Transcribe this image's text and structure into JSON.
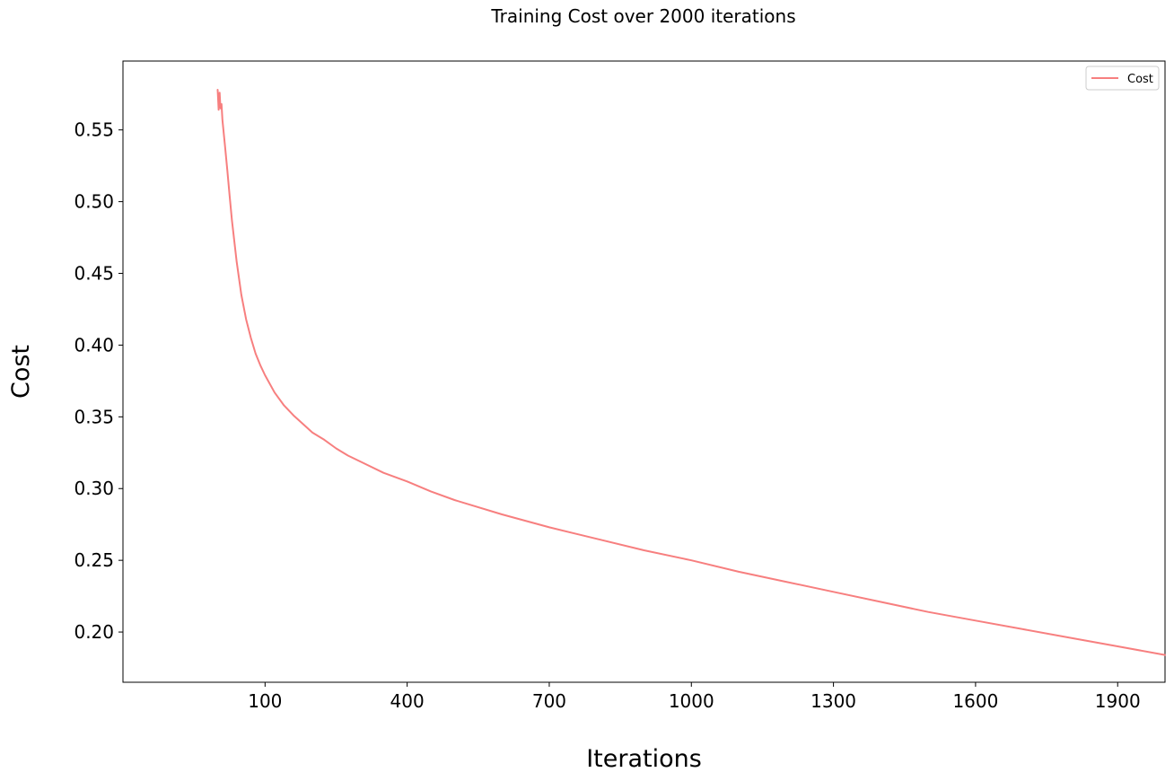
{
  "chart_data": {
    "type": "line",
    "title": "Training Cost over 2000 iterations",
    "xlabel": "Iterations",
    "ylabel": "Cost",
    "xlim": [
      -200,
      2000
    ],
    "ylim": [
      0.165,
      0.598
    ],
    "xticks": [
      100,
      400,
      700,
      1000,
      1300,
      1600,
      1900
    ],
    "xtick_labels": [
      "100",
      "400",
      "700",
      "1000",
      "1300",
      "1600",
      "1900"
    ],
    "yticks": [
      0.2,
      0.25,
      0.3,
      0.35,
      0.4,
      0.45,
      0.5,
      0.55
    ],
    "ytick_labels": [
      "0.20",
      "0.25",
      "0.30",
      "0.35",
      "0.40",
      "0.45",
      "0.50",
      "0.55"
    ],
    "grid": false,
    "legend_position": "top-right",
    "series": [
      {
        "name": "Cost",
        "color": "#f77f7f",
        "x": [
          0,
          2,
          3,
          4,
          5,
          6,
          8,
          10,
          15,
          20,
          25,
          30,
          40,
          50,
          60,
          70,
          80,
          90,
          100,
          120,
          140,
          160,
          180,
          200,
          225,
          250,
          275,
          300,
          350,
          400,
          450,
          500,
          600,
          700,
          800,
          900,
          1000,
          1100,
          1200,
          1300,
          1400,
          1500,
          1600,
          1700,
          1800,
          1900,
          2000
        ],
        "values": [
          0.578,
          0.564,
          0.572,
          0.576,
          0.57,
          0.565,
          0.568,
          0.557,
          0.54,
          0.523,
          0.505,
          0.487,
          0.458,
          0.435,
          0.418,
          0.405,
          0.394,
          0.386,
          0.379,
          0.367,
          0.358,
          0.351,
          0.345,
          0.339,
          0.334,
          0.328,
          0.323,
          0.319,
          0.311,
          0.305,
          0.298,
          0.292,
          0.282,
          0.273,
          0.265,
          0.257,
          0.25,
          0.242,
          0.235,
          0.228,
          0.221,
          0.214,
          0.208,
          0.202,
          0.196,
          0.19,
          0.184
        ]
      }
    ]
  }
}
